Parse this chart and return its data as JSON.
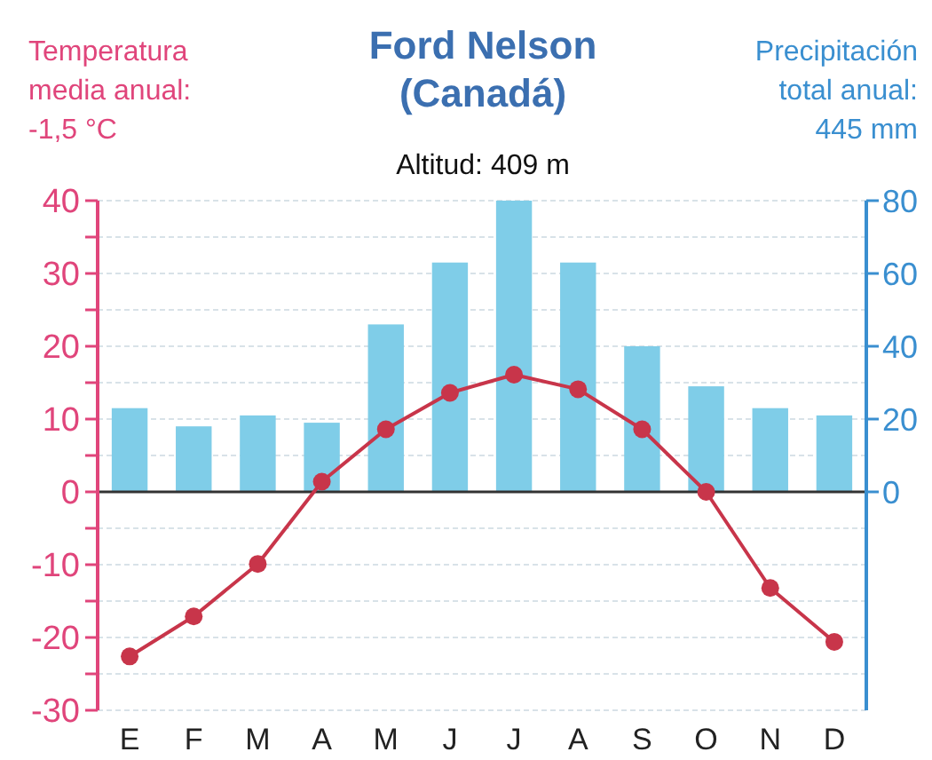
{
  "chart_data": {
    "type": "bar",
    "title": "Ford Nelson\n(Canadá)",
    "subtitle": "Altitud: 409 m",
    "ylabel": "Temperatura\nmedia anual:\n-1,5 °C",
    "y2label": "Precipitación\ntotal anual:\n445 mm",
    "categories": [
      "E",
      "F",
      "M",
      "A",
      "M",
      "J",
      "J",
      "A",
      "S",
      "O",
      "N",
      "D"
    ],
    "series": [
      {
        "axis": "y2",
        "color": "#7fcde8",
        "values": [
          23,
          18,
          21,
          19,
          46,
          63,
          80,
          63,
          40,
          29,
          23,
          21
        ]
      },
      {
        "type": "line",
        "axis": "y",
        "color": "#c8354a",
        "marker": "circle",
        "values": [
          -22.6,
          -17.1,
          -9.9,
          1.4,
          8.6,
          13.6,
          16.1,
          14.1,
          8.6,
          0,
          -13.2,
          -20.6
        ]
      }
    ],
    "ylim": [
      -30,
      40
    ],
    "yticks": [
      -30,
      {
        "value": -25,
        "label": null
      },
      -20,
      {
        "value": -15,
        "label": null
      },
      -10,
      {
        "value": -5,
        "label": null
      },
      0,
      {
        "value": 5,
        "label": null
      },
      10,
      {
        "value": 15,
        "label": null
      },
      20,
      {
        "value": 25,
        "label": null
      },
      30,
      {
        "value": 35,
        "label": null
      },
      40
    ],
    "y2lim": [
      -60,
      80
    ],
    "y2ticks": [
      0,
      20,
      40,
      60,
      80
    ],
    "grid": "y",
    "ref_lines": [
      {
        "axis": "y",
        "value": 0,
        "color": "#333333"
      }
    ]
  }
}
